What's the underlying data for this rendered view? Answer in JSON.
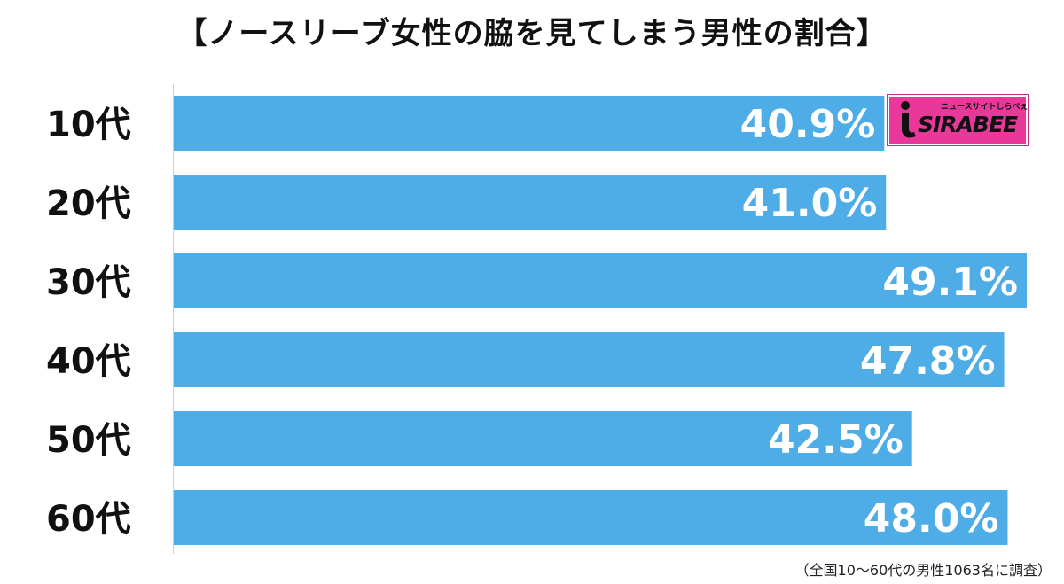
{
  "title": "【ノースリーブ女性の脇を見てしまう男性の割合】",
  "footnote": "（全国10～60代の男性1063名に調査）",
  "logo": {
    "text": "SIRABEE",
    "subtitle": "ニュースサイトしらべぇ",
    "color": "#e8399a"
  },
  "chart_data": {
    "type": "bar",
    "orientation": "horizontal",
    "categories": [
      "10代",
      "20代",
      "30代",
      "40代",
      "50代",
      "60代"
    ],
    "values": [
      40.9,
      41.0,
      49.1,
      47.8,
      42.5,
      48.0
    ],
    "value_labels": [
      "40.9%",
      "41.0%",
      "49.1%",
      "47.8%",
      "42.5%",
      "48.0%"
    ],
    "bar_color": "#4eace6",
    "xlim": [
      0,
      50
    ],
    "grid": false,
    "legend": "none"
  }
}
